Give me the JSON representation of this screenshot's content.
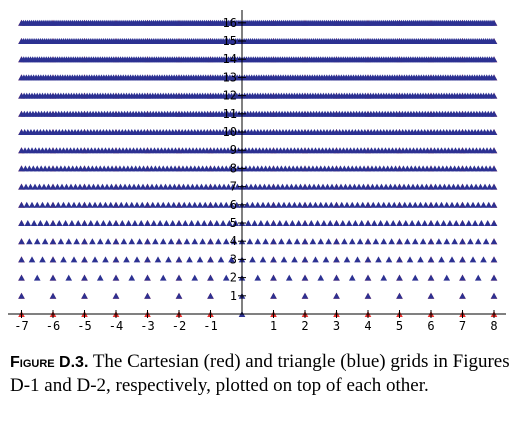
{
  "chart_data": {
    "type": "scatter",
    "title": "",
    "xlabel": "",
    "ylabel": "",
    "xlim": [
      -7.5,
      8.3
    ],
    "ylim": [
      -0.4,
      16.4
    ],
    "x_ticks": [
      -7,
      -6,
      -5,
      -4,
      -3,
      -2,
      -1,
      1,
      2,
      3,
      4,
      5,
      6,
      7,
      8
    ],
    "y_ticks": [
      1,
      2,
      3,
      4,
      5,
      6,
      7,
      8,
      9,
      10,
      11,
      12,
      13,
      14,
      15,
      16
    ],
    "x_tick_labels": [
      "-7",
      "-6",
      "-5",
      "-4",
      "-3",
      "-2",
      "-1",
      "1",
      "2",
      "3",
      "4",
      "5",
      "6",
      "7",
      "8"
    ],
    "y_tick_labels": [
      "1",
      "2",
      "3",
      "4",
      "5",
      "6",
      "7",
      "8",
      "9",
      "10",
      "11",
      "12",
      "13",
      "14",
      "15",
      "16"
    ],
    "grid": false,
    "series": [
      {
        "color": "#e8302d",
        "marker": "triangle",
        "description_grid": "cartesian",
        "x_range": [
          -7,
          8
        ],
        "y_range": [
          0,
          16
        ],
        "step": 1
      },
      {
        "color": "#2c3192",
        "marker": "triangle",
        "description_grid": "triangle",
        "rows_y": [
          0,
          1,
          2,
          3,
          4,
          5,
          6,
          7,
          8,
          9,
          10,
          11,
          12,
          13,
          14,
          15,
          16
        ],
        "row_spacing_rule": "row y has points spaced 1/y (row 0 is the origin only)",
        "x_range": [
          -7,
          8
        ]
      }
    ]
  },
  "caption": {
    "label": "Figure D.3.",
    "text": " The Cartesian (red) and triangle (blue) grids in Figures D-1 and D-2, respectively, plotted on top of each other."
  },
  "colors": {
    "red": "#e8302d",
    "blue": "#2c3192",
    "axis": "#000000"
  }
}
